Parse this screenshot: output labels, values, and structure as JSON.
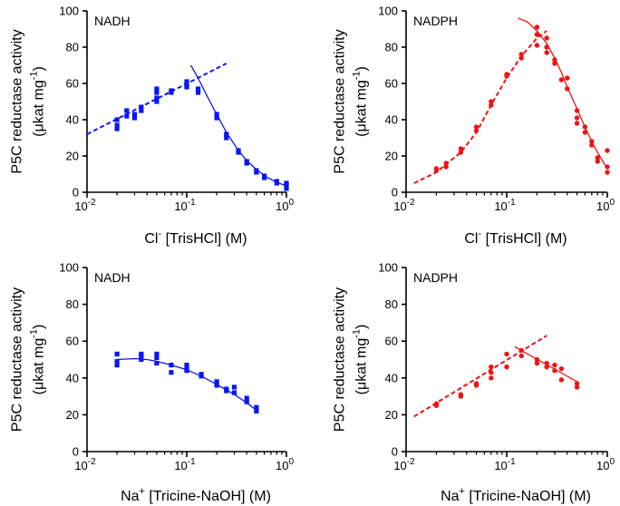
{
  "colors": {
    "blue": "#0b16f0",
    "red": "#f01212",
    "axis": "#000000"
  },
  "chart_data": [
    {
      "id": "a",
      "type": "scatter",
      "title": "NADH",
      "xlabel": {
        "base": "Cl",
        "sup": "-",
        "rest": " [TrisHCl] (M)"
      },
      "ylabel": {
        "line1": "P5C reductase activity",
        "line2_pre": "(μkat mg",
        "line2_sup": "-1",
        "line2_post": ")"
      },
      "xscale": "log",
      "xlim": [
        0.01,
        1
      ],
      "ylim": [
        0,
        100
      ],
      "xticks": [
        {
          "v": 0.01,
          "base": "10",
          "exp": "-2"
        },
        {
          "v": 0.1,
          "base": "10",
          "exp": "-1"
        },
        {
          "v": 1,
          "base": "10",
          "exp": "0"
        }
      ],
      "yticks": [
        {
          "v": 0,
          "label": "0"
        },
        {
          "v": 20,
          "label": "20"
        },
        {
          "v": 40,
          "label": "40"
        },
        {
          "v": 60,
          "label": "60"
        },
        {
          "v": 80,
          "label": "80"
        },
        {
          "v": 100,
          "label": "100"
        }
      ],
      "color": "blue",
      "marker": "square",
      "points": [
        [
          0.02,
          35
        ],
        [
          0.02,
          37
        ],
        [
          0.02,
          40
        ],
        [
          0.025,
          42
        ],
        [
          0.025,
          45
        ],
        [
          0.03,
          41
        ],
        [
          0.03,
          43
        ],
        [
          0.035,
          45
        ],
        [
          0.035,
          47
        ],
        [
          0.05,
          50
        ],
        [
          0.05,
          52
        ],
        [
          0.05,
          55
        ],
        [
          0.05,
          57
        ],
        [
          0.07,
          55
        ],
        [
          0.07,
          56
        ],
        [
          0.1,
          58
        ],
        [
          0.1,
          59
        ],
        [
          0.1,
          61
        ],
        [
          0.13,
          55
        ],
        [
          0.13,
          57
        ],
        [
          0.2,
          41
        ],
        [
          0.2,
          43
        ],
        [
          0.25,
          30
        ],
        [
          0.25,
          32
        ],
        [
          0.33,
          22
        ],
        [
          0.33,
          23
        ],
        [
          0.4,
          16
        ],
        [
          0.4,
          17
        ],
        [
          0.5,
          11
        ],
        [
          0.5,
          12
        ],
        [
          0.6,
          8
        ],
        [
          0.6,
          9
        ],
        [
          0.8,
          5
        ],
        [
          0.8,
          6
        ],
        [
          1.0,
          2
        ],
        [
          1.0,
          4
        ],
        [
          1.0,
          5
        ]
      ],
      "fits": [
        {
          "kind": "line",
          "dashed": true,
          "x": [
            0.01,
            0.25
          ],
          "y": [
            32,
            71
          ]
        },
        {
          "kind": "curve",
          "dashed": false,
          "x": [
            0.11,
            0.13,
            0.16,
            0.2,
            0.25,
            0.33,
            0.4,
            0.5,
            0.65,
            0.8,
            1.0
          ],
          "y": [
            70,
            63,
            53,
            43,
            33,
            23,
            17.5,
            12.5,
            8,
            5.5,
            3.5
          ]
        }
      ]
    },
    {
      "id": "b",
      "type": "scatter",
      "title": "NADPH",
      "xlabel": {
        "base": "Cl",
        "sup": "-",
        "rest": " [TrisHCl] (M)"
      },
      "ylabel": {
        "line1": "P5C reductase activity",
        "line2_pre": "(μkat mg",
        "line2_sup": "-1",
        "line2_post": ")"
      },
      "xscale": "log",
      "xlim": [
        0.01,
        1
      ],
      "ylim": [
        0,
        100
      ],
      "xticks": [
        {
          "v": 0.01,
          "base": "10",
          "exp": "-2"
        },
        {
          "v": 0.1,
          "base": "10",
          "exp": "-1"
        },
        {
          "v": 1,
          "base": "10",
          "exp": "0"
        }
      ],
      "yticks": [
        {
          "v": 0,
          "label": "0"
        },
        {
          "v": 20,
          "label": "20"
        },
        {
          "v": 40,
          "label": "40"
        },
        {
          "v": 60,
          "label": "60"
        },
        {
          "v": 80,
          "label": "80"
        },
        {
          "v": 100,
          "label": "100"
        }
      ],
      "color": "red",
      "marker": "circle",
      "points": [
        [
          0.02,
          12
        ],
        [
          0.02,
          13
        ],
        [
          0.025,
          14
        ],
        [
          0.025,
          16
        ],
        [
          0.035,
          22
        ],
        [
          0.035,
          24
        ],
        [
          0.05,
          34
        ],
        [
          0.05,
          36
        ],
        [
          0.07,
          48
        ],
        [
          0.07,
          50
        ],
        [
          0.1,
          64
        ],
        [
          0.1,
          65
        ],
        [
          0.14,
          74
        ],
        [
          0.14,
          76
        ],
        [
          0.2,
          81
        ],
        [
          0.2,
          87
        ],
        [
          0.2,
          91
        ],
        [
          0.25,
          77
        ],
        [
          0.25,
          80
        ],
        [
          0.25,
          85
        ],
        [
          0.3,
          71
        ],
        [
          0.3,
          73
        ],
        [
          0.35,
          62
        ],
        [
          0.4,
          57
        ],
        [
          0.4,
          63
        ],
        [
          0.5,
          41
        ],
        [
          0.5,
          45
        ],
        [
          0.5,
          38
        ],
        [
          0.6,
          33
        ],
        [
          0.6,
          36
        ],
        [
          0.7,
          26
        ],
        [
          0.7,
          28
        ],
        [
          0.8,
          19
        ],
        [
          0.8,
          17
        ],
        [
          1.0,
          11
        ],
        [
          1.0,
          14
        ],
        [
          1.0,
          23
        ]
      ],
      "fits": [
        {
          "kind": "curve",
          "dashed": true,
          "x": [
            0.012,
            0.02,
            0.035,
            0.05,
            0.07,
            0.1,
            0.14,
            0.2,
            0.25
          ],
          "y": [
            5,
            11,
            22,
            33,
            48,
            63,
            75,
            85,
            89
          ]
        },
        {
          "kind": "curve",
          "dashed": false,
          "x": [
            0.13,
            0.16,
            0.2,
            0.25,
            0.3,
            0.35,
            0.4,
            0.5,
            0.6,
            0.7,
            0.8,
            1.0
          ],
          "y": [
            96,
            94,
            89,
            82,
            74,
            66,
            58,
            46,
            36,
            28,
            22,
            13
          ]
        }
      ]
    },
    {
      "id": "c",
      "type": "scatter",
      "title": "NADH",
      "xlabel": {
        "base": "Na",
        "sup": "+",
        "rest": " [Tricine-NaOH] (M)"
      },
      "ylabel": {
        "line1": "P5C reductase activity",
        "line2_pre": "(μkat mg",
        "line2_sup": "-1",
        "line2_post": ")"
      },
      "xscale": "log",
      "xlim": [
        0.01,
        1
      ],
      "ylim": [
        0,
        100
      ],
      "xticks": [
        {
          "v": 0.01,
          "base": "10",
          "exp": "-2"
        },
        {
          "v": 0.1,
          "base": "10",
          "exp": "-1"
        },
        {
          "v": 1,
          "base": "10",
          "exp": "0"
        }
      ],
      "yticks": [
        {
          "v": 0,
          "label": "0"
        },
        {
          "v": 20,
          "label": "20"
        },
        {
          "v": 40,
          "label": "40"
        },
        {
          "v": 60,
          "label": "60"
        },
        {
          "v": 80,
          "label": "80"
        },
        {
          "v": 100,
          "label": "100"
        }
      ],
      "color": "blue",
      "marker": "square",
      "points": [
        [
          0.02,
          47
        ],
        [
          0.02,
          49
        ],
        [
          0.02,
          53
        ],
        [
          0.035,
          50
        ],
        [
          0.035,
          52
        ],
        [
          0.035,
          53
        ],
        [
          0.05,
          48
        ],
        [
          0.05,
          51
        ],
        [
          0.05,
          53
        ],
        [
          0.07,
          43
        ],
        [
          0.07,
          47
        ],
        [
          0.1,
          44
        ],
        [
          0.1,
          45
        ],
        [
          0.1,
          47
        ],
        [
          0.14,
          41
        ],
        [
          0.14,
          42
        ],
        [
          0.2,
          36
        ],
        [
          0.2,
          38
        ],
        [
          0.25,
          33
        ],
        [
          0.25,
          34
        ],
        [
          0.3,
          32
        ],
        [
          0.3,
          35
        ],
        [
          0.4,
          27
        ],
        [
          0.4,
          29
        ],
        [
          0.5,
          22
        ],
        [
          0.5,
          24
        ]
      ],
      "fits": [
        {
          "kind": "curve",
          "dashed": false,
          "x": [
            0.02,
            0.03,
            0.04,
            0.05,
            0.07,
            0.1,
            0.14,
            0.2,
            0.25,
            0.3,
            0.4,
            0.5
          ],
          "y": [
            50,
            50.5,
            50,
            49,
            47,
            44.5,
            41,
            36.5,
            33.5,
            31,
            26.5,
            22.5
          ]
        }
      ]
    },
    {
      "id": "d",
      "type": "scatter",
      "title": "NADPH",
      "xlabel": {
        "base": "Na",
        "sup": "+",
        "rest": " [Tricine-NaOH] (M)"
      },
      "ylabel": {
        "line1": "P5C reductase activity",
        "line2_pre": "(μkat mg",
        "line2_sup": "-1",
        "line2_post": ")"
      },
      "xscale": "log",
      "xlim": [
        0.01,
        1
      ],
      "ylim": [
        0,
        100
      ],
      "xticks": [
        {
          "v": 0.01,
          "base": "10",
          "exp": "-2"
        },
        {
          "v": 0.1,
          "base": "10",
          "exp": "-1"
        },
        {
          "v": 1,
          "base": "10",
          "exp": "0"
        }
      ],
      "yticks": [
        {
          "v": 0,
          "label": "0"
        },
        {
          "v": 20,
          "label": "20"
        },
        {
          "v": 40,
          "label": "40"
        },
        {
          "v": 60,
          "label": "60"
        },
        {
          "v": 80,
          "label": "80"
        },
        {
          "v": 100,
          "label": "100"
        }
      ],
      "color": "red",
      "marker": "circle",
      "points": [
        [
          0.02,
          25
        ],
        [
          0.02,
          26
        ],
        [
          0.035,
          30
        ],
        [
          0.035,
          31
        ],
        [
          0.05,
          36
        ],
        [
          0.05,
          37
        ],
        [
          0.07,
          40
        ],
        [
          0.07,
          43
        ],
        [
          0.07,
          46
        ],
        [
          0.1,
          46
        ],
        [
          0.1,
          53
        ],
        [
          0.14,
          52
        ],
        [
          0.14,
          55
        ],
        [
          0.2,
          48
        ],
        [
          0.2,
          50
        ],
        [
          0.25,
          46
        ],
        [
          0.25,
          48
        ],
        [
          0.3,
          44
        ],
        [
          0.3,
          47
        ],
        [
          0.35,
          39
        ],
        [
          0.35,
          45
        ],
        [
          0.5,
          35
        ],
        [
          0.5,
          37
        ]
      ],
      "fits": [
        {
          "kind": "line",
          "dashed": true,
          "x": [
            0.012,
            0.25
          ],
          "y": [
            19,
            63
          ]
        },
        {
          "kind": "line",
          "dashed": false,
          "x": [
            0.12,
            0.5
          ],
          "y": [
            57,
            38
          ]
        }
      ]
    }
  ]
}
